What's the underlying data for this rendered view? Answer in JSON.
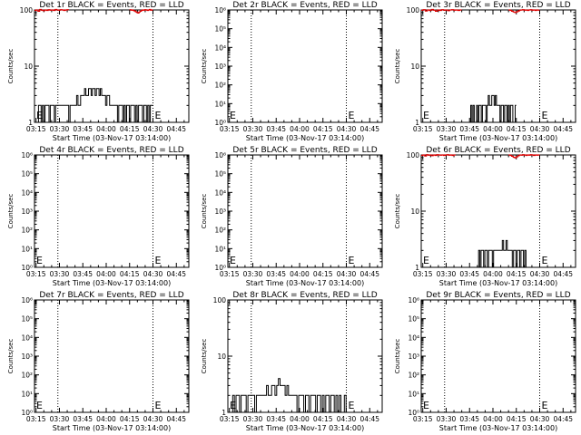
{
  "figure": {
    "background": "#ffffff"
  },
  "colors": {
    "events": "#000000",
    "lld": "#dd0000"
  },
  "chart_data": [
    {
      "type": "line",
      "title": "Det 1r BLACK = Events, RED = LLD",
      "xlabel": "Start Time (03-Nov-17 03:14:00)",
      "ylabel": "Counts/sec",
      "xtick_labels": [
        "03:15",
        "03:30",
        "03:45",
        "04:00",
        "04:15",
        "04:30",
        "04:45"
      ],
      "xlim": [
        "03:14",
        "04:53"
      ],
      "yscale": "log",
      "ylim": [
        1,
        100
      ],
      "ytick_labels": [
        "1",
        "10",
        "100"
      ],
      "vlines": [
        "03:29",
        "04:30"
      ],
      "markers": [
        {
          "label": "E",
          "x": "03:14"
        },
        {
          "label": "E",
          "x": "04:30"
        }
      ],
      "series": [
        {
          "color": "black",
          "y": [
            1,
            1,
            1,
            2,
            2,
            1,
            2,
            1,
            2,
            2,
            2,
            1,
            2,
            2,
            2,
            1,
            2,
            2,
            2,
            2,
            2,
            2,
            2,
            2,
            2,
            2,
            1,
            2,
            2,
            2,
            2,
            2,
            3,
            2,
            2,
            3,
            3,
            3,
            4,
            3,
            3,
            4,
            4,
            3,
            4,
            4,
            3,
            4,
            4,
            3,
            4,
            3,
            3,
            3,
            2,
            3,
            3,
            2,
            2,
            2,
            2,
            2,
            2,
            1,
            2,
            2,
            2,
            1,
            2,
            1,
            2,
            2,
            1,
            2,
            2,
            2,
            1,
            2,
            1,
            2,
            2,
            2,
            1,
            2,
            2,
            1,
            2,
            1,
            2,
            2
          ],
          "x_start": "03:14",
          "x_end": "04:30"
        },
        {
          "color": "red",
          "y": [
            98,
            100,
            95,
            102,
            99,
            97,
            100,
            98,
            101,
            99,
            100,
            98,
            102,
            100,
            99,
            101,
            100,
            98,
            100,
            101
          ],
          "x_start": "03:14",
          "x_end": "03:36"
        },
        {
          "color": "red",
          "y": [
            101,
            99,
            100,
            98,
            96,
            93,
            90,
            88,
            92,
            95,
            98,
            100,
            99,
            101,
            100,
            98,
            100,
            102,
            99,
            100
          ],
          "x_start": "04:15",
          "x_end": "04:30"
        }
      ]
    },
    {
      "type": "line",
      "title": "Det 2r BLACK = Events, RED = LLD",
      "xlabel": "Start Time (03-Nov-17 03:14:00)",
      "ylabel": "Counts/sec",
      "xtick_labels": [
        "03:15",
        "03:30",
        "03:45",
        "04:00",
        "04:15",
        "04:30",
        "04:45"
      ],
      "xlim": [
        "03:14",
        "04:53"
      ],
      "yscale": "log",
      "ylim": [
        1,
        1000000
      ],
      "ytick_labels": [
        "10⁰",
        "10¹",
        "10²",
        "10³",
        "10⁴",
        "10⁵",
        "10⁶"
      ],
      "vlines": [
        "03:29",
        "04:30"
      ],
      "markers": [
        {
          "label": "E",
          "x": "03:14"
        },
        {
          "label": "E",
          "x": "04:30"
        }
      ],
      "series": []
    },
    {
      "type": "line",
      "title": "Det 3r BLACK = Events, RED = LLD",
      "xlabel": "Start Time (03-Nov-17 03:14:00)",
      "ylabel": "Counts/sec",
      "xtick_labels": [
        "03:15",
        "03:30",
        "03:45",
        "04:00",
        "04:15",
        "04:30",
        "04:45"
      ],
      "xlim": [
        "03:14",
        "04:53"
      ],
      "yscale": "log",
      "ylim": [
        1,
        100
      ],
      "ytick_labels": [
        "1",
        "10",
        "100"
      ],
      "vlines": [
        "03:29",
        "04:30"
      ],
      "markers": [
        {
          "label": "E",
          "x": "03:14"
        },
        {
          "label": "E",
          "x": "04:30"
        }
      ],
      "series": [
        {
          "color": "black",
          "y": [
            1,
            2,
            1,
            2,
            1,
            1,
            2,
            1,
            2,
            2,
            1,
            2,
            2,
            2,
            1,
            2,
            3,
            2,
            2,
            3,
            3,
            2,
            3,
            2,
            2,
            2,
            1,
            2,
            2,
            1,
            2,
            2,
            1,
            2,
            1,
            2,
            2,
            1,
            1,
            2
          ],
          "x_start": "03:45",
          "x_end": "04:15"
        },
        {
          "color": "red",
          "y": [
            99,
            101,
            96,
            100,
            98,
            102,
            99,
            95,
            100,
            98,
            101,
            99,
            100,
            97,
            100,
            101,
            99,
            100,
            98,
            100
          ],
          "x_start": "03:14",
          "x_end": "03:40"
        },
        {
          "color": "red",
          "y": [
            100,
            98,
            95,
            92,
            90,
            93,
            96,
            99,
            100,
            101,
            99,
            100,
            98,
            100,
            101,
            99,
            100,
            98,
            100,
            99
          ],
          "x_start": "04:10",
          "x_end": "04:30"
        }
      ]
    },
    {
      "type": "line",
      "title": "Det 4r BLACK = Events, RED = LLD",
      "xlabel": "Start Time (03-Nov-17 03:14:00)",
      "ylabel": "Counts/sec",
      "xtick_labels": [
        "03:15",
        "03:30",
        "03:45",
        "04:00",
        "04:15",
        "04:30",
        "04:45"
      ],
      "xlim": [
        "03:14",
        "04:53"
      ],
      "yscale": "log",
      "ylim": [
        1,
        1000000
      ],
      "ytick_labels": [
        "10⁰",
        "10¹",
        "10²",
        "10³",
        "10⁴",
        "10⁵",
        "10⁶"
      ],
      "vlines": [
        "03:29",
        "04:30"
      ],
      "markers": [
        {
          "label": "E",
          "x": "03:14"
        },
        {
          "label": "E",
          "x": "04:30"
        }
      ],
      "series": []
    },
    {
      "type": "line",
      "title": "Det 5r BLACK = Events, RED = LLD",
      "xlabel": "Start Time (03-Nov-17 03:14:00)",
      "ylabel": "Counts/sec",
      "xtick_labels": [
        "03:15",
        "03:30",
        "03:45",
        "04:00",
        "04:15",
        "04:30",
        "04:45"
      ],
      "xlim": [
        "03:14",
        "04:53"
      ],
      "yscale": "log",
      "ylim": [
        1,
        1000000
      ],
      "ytick_labels": [
        "10⁰",
        "10¹",
        "10²",
        "10³",
        "10⁴",
        "10⁵",
        "10⁶"
      ],
      "vlines": [
        "03:29",
        "04:30"
      ],
      "markers": [
        {
          "label": "E",
          "x": "03:14"
        },
        {
          "label": "E",
          "x": "04:30"
        }
      ],
      "series": []
    },
    {
      "type": "line",
      "title": "Det 6r BLACK = Events, RED = LLD",
      "xlabel": "Start Time (03-Nov-17 03:14:00)",
      "ylabel": "Counts/sec",
      "xtick_labels": [
        "03:15",
        "03:30",
        "03:45",
        "04:00",
        "04:15",
        "04:30",
        "04:45"
      ],
      "xlim": [
        "03:14",
        "04:53"
      ],
      "yscale": "log",
      "ylim": [
        1,
        100
      ],
      "ytick_labels": [
        "1",
        "10",
        "100"
      ],
      "vlines": [
        "03:29",
        "04:30"
      ],
      "markers": [
        {
          "label": "E",
          "x": "03:14"
        },
        {
          "label": "E",
          "x": "04:30"
        }
      ],
      "series": [
        {
          "color": "black",
          "y": [
            1,
            2,
            1,
            2,
            2,
            1,
            2,
            2,
            1,
            2,
            2,
            2,
            1,
            2,
            2,
            2,
            2,
            2,
            2,
            2,
            3,
            2,
            2,
            3,
            2,
            2,
            2,
            2,
            1,
            2,
            2,
            1,
            2,
            2,
            1,
            2,
            2,
            1,
            2,
            1
          ],
          "x_start": "03:50",
          "x_end": "04:22"
        },
        {
          "color": "red",
          "y": [
            98,
            100,
            96,
            101,
            99,
            100,
            97,
            100,
            98,
            101,
            100,
            99,
            100,
            98,
            100,
            101,
            99,
            100,
            98,
            100
          ],
          "x_start": "03:14",
          "x_end": "03:36"
        },
        {
          "color": "red",
          "y": [
            100,
            98,
            95,
            91,
            89,
            93,
            97,
            100,
            99,
            101,
            100,
            98,
            100,
            99,
            101,
            100,
            98,
            100,
            99,
            100
          ],
          "x_start": "04:10",
          "x_end": "04:30"
        }
      ]
    },
    {
      "type": "line",
      "title": "Det 7r BLACK = Events, RED = LLD",
      "xlabel": "Start Time (03-Nov-17 03:14:00)",
      "ylabel": "Counts/sec",
      "xtick_labels": [
        "03:15",
        "03:30",
        "03:45",
        "04:00",
        "04:15",
        "04:30",
        "04:45"
      ],
      "xlim": [
        "03:14",
        "04:53"
      ],
      "yscale": "log",
      "ylim": [
        1,
        1000000
      ],
      "ytick_labels": [
        "10⁰",
        "10¹",
        "10²",
        "10³",
        "10⁴",
        "10⁵",
        "10⁶"
      ],
      "vlines": [
        "03:29",
        "04:30"
      ],
      "markers": [
        {
          "label": "E",
          "x": "03:14"
        },
        {
          "label": "E",
          "x": "04:30"
        }
      ],
      "series": []
    },
    {
      "type": "line",
      "title": "Det 8r BLACK = Events, RED = LLD",
      "xlabel": "Start Time (03-Nov-17 03:14:00)",
      "ylabel": "Counts/sec",
      "xtick_labels": [
        "03:15",
        "03:30",
        "03:45",
        "04:00",
        "04:15",
        "04:30",
        "04:45"
      ],
      "xlim": [
        "03:14",
        "04:53"
      ],
      "yscale": "log",
      "ylim": [
        1,
        100
      ],
      "ytick_labels": [
        "1",
        "10",
        "100"
      ],
      "vlines": [
        "03:29",
        "04:30"
      ],
      "markers": [
        {
          "label": "E",
          "x": "03:14"
        },
        {
          "label": "E",
          "x": "04:30"
        }
      ],
      "series": [
        {
          "color": "black",
          "y": [
            1,
            2,
            1,
            2,
            2,
            1,
            2,
            2,
            2,
            1,
            2,
            2,
            2,
            2,
            1,
            2,
            2,
            2,
            2,
            2,
            2,
            3,
            2,
            2,
            3,
            3,
            2,
            3,
            4,
            3,
            3,
            3,
            2,
            3,
            2,
            2,
            2,
            2,
            2,
            1,
            2,
            2,
            2,
            1,
            2,
            2,
            1,
            2,
            2,
            2,
            1,
            2,
            2,
            1,
            2,
            1,
            2,
            2,
            1,
            2,
            2,
            1,
            2,
            1,
            2,
            1,
            1,
            2,
            1,
            1
          ],
          "x_start": "03:16",
          "x_end": "04:32"
        }
      ]
    },
    {
      "type": "line",
      "title": "Det 9r BLACK = Events, RED = LLD",
      "xlabel": "Start Time (03-Nov-17 03:14:00)",
      "ylabel": "Counts/sec",
      "xtick_labels": [
        "03:15",
        "03:30",
        "03:45",
        "04:00",
        "04:15",
        "04:30",
        "04:45"
      ],
      "xlim": [
        "03:14",
        "04:53"
      ],
      "yscale": "log",
      "ylim": [
        1,
        1000000
      ],
      "ytick_labels": [
        "10⁰",
        "10¹",
        "10²",
        "10³",
        "10⁴",
        "10⁵",
        "10⁶"
      ],
      "vlines": [
        "03:29",
        "04:30"
      ],
      "markers": [
        {
          "label": "E",
          "x": "03:14"
        },
        {
          "label": "E",
          "x": "04:30"
        }
      ],
      "series": []
    }
  ]
}
